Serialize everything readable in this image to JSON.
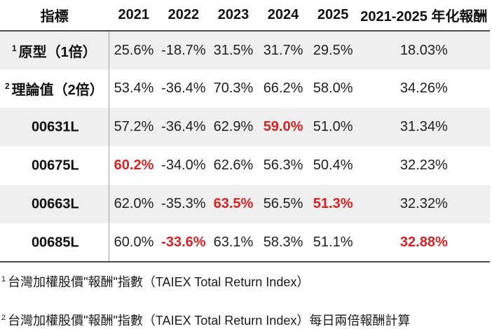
{
  "colors": {
    "red_highlight": "#d12424",
    "row_stripe": "#efefef",
    "border_dark": "#4d4d4d",
    "divider": "#9c9c9c"
  },
  "table": {
    "columns": [
      "指標",
      "2021",
      "2022",
      "2023",
      "2024",
      "2025",
      "2021-2025 年化報酬"
    ],
    "rows": [
      {
        "sup": "1",
        "label": "原型（1倍）",
        "values": [
          "25.6%",
          "-18.7%",
          "31.5%",
          "31.7%",
          "29.5%",
          "18.03%"
        ]
      },
      {
        "sup": "2",
        "label": "理論值（2倍）",
        "values": [
          "53.4%",
          "-36.4%",
          "70.3%",
          "66.2%",
          "58.0%",
          "34.26%"
        ]
      },
      {
        "label": "00631L",
        "values": [
          "57.2%",
          "-36.4%",
          "62.9%",
          "59.0%",
          "51.0%",
          "31.34%"
        ]
      },
      {
        "label": "00675L",
        "values": [
          "60.2%",
          "-34.0%",
          "62.6%",
          "56.3%",
          "50.4%",
          "32.23%"
        ]
      },
      {
        "label": "00663L",
        "values": [
          "62.0%",
          "-35.3%",
          "63.5%",
          "56.5%",
          "51.3%",
          "32.32%"
        ]
      },
      {
        "label": "00685L",
        "values": [
          "60.0%",
          "-33.6%",
          "63.1%",
          "58.3%",
          "51.1%",
          "32.88%"
        ]
      }
    ]
  },
  "footnotes": [
    {
      "sup": "1",
      "text": "台灣加權股價\"報酬\"指數（TAIEX Total Return Index）"
    },
    {
      "sup": "2",
      "text": "台灣加權股價\"報酬\"指數（TAIEX Total Return Index）每日兩倍報酬計算"
    }
  ]
}
